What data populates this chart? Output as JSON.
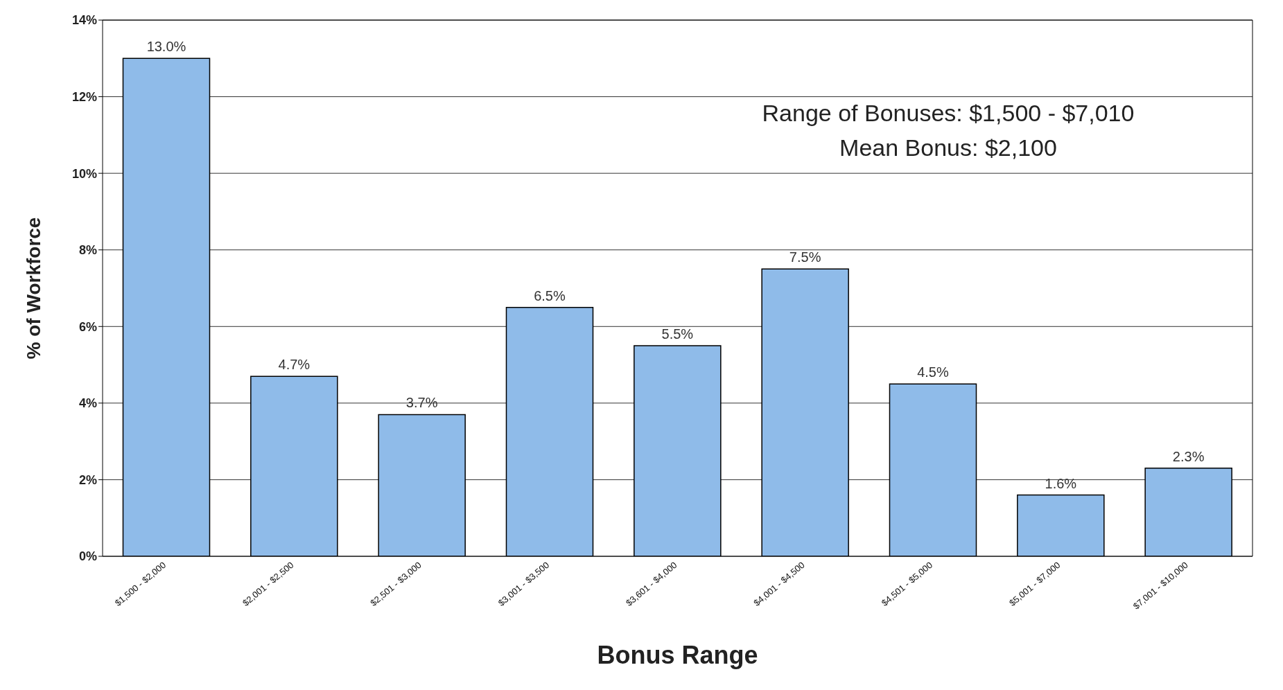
{
  "chart_data": {
    "type": "bar",
    "xlabel": "Bonus Range",
    "ylabel": "% of Workforce",
    "categories": [
      "$1,500 - $2,000",
      "$2,001 - $2,500",
      "$2,501 - $3,000",
      "$3,001 - $3,500",
      "$3,601 - $4,000",
      "$4,001 - $4,500",
      "$4,501 - $5,000",
      "$5,001 - $7,000",
      "$7,001 - $10,000"
    ],
    "values": [
      13.0,
      4.7,
      3.7,
      6.5,
      5.5,
      7.5,
      4.5,
      1.6,
      2.3
    ],
    "value_labels": [
      "13.0%",
      "4.7%",
      "3.7%",
      "6.5%",
      "5.5%",
      "7.5%",
      "4.5%",
      "1.6%",
      "2.3%"
    ],
    "color": "#8fbbe9",
    "ylim": [
      0,
      14
    ],
    "yticks": [
      {
        "value": 0,
        "label": "0%"
      },
      {
        "value": 2,
        "label": "2%"
      },
      {
        "value": 4,
        "label": "4%"
      },
      {
        "value": 6,
        "label": "6%"
      },
      {
        "value": 8,
        "label": "8%"
      },
      {
        "value": 10,
        "label": "10%"
      },
      {
        "value": 12,
        "label": "12%"
      },
      {
        "value": 14,
        "label": "14%"
      }
    ],
    "grid": "y",
    "annotations": [
      "Range of Bonuses: $1,500 - $7,010",
      "Mean Bonus: $2,100"
    ]
  }
}
